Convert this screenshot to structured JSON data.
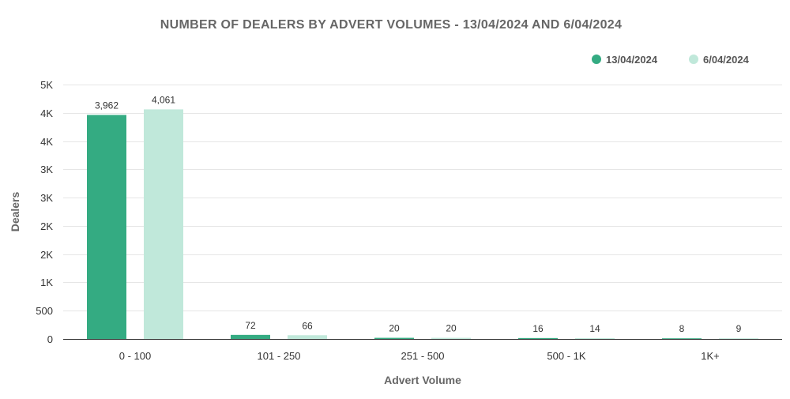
{
  "chart_data": {
    "type": "bar",
    "title": "NUMBER OF DEALERS BY ADVERT VOLUMES - 13/04/2024 AND 6/04/2024",
    "xlabel": "Advert Volume",
    "ylabel": "Dealers",
    "categories": [
      "0 - 100",
      "101 - 250",
      "251 - 500",
      "500 - 1K",
      "1K+"
    ],
    "series": [
      {
        "name": "13/04/2024",
        "color": "#34ab82",
        "values": [
          3962,
          72,
          20,
          16,
          8
        ],
        "labels": [
          "3,962",
          "72",
          "20",
          "16",
          "8"
        ]
      },
      {
        "name": "6/04/2024",
        "color": "#c0e8da",
        "values": [
          4061,
          66,
          20,
          14,
          9
        ],
        "labels": [
          "4,061",
          "66",
          "20",
          "14",
          "9"
        ]
      }
    ],
    "y_ticks": [
      {
        "value": 0,
        "label": "0"
      },
      {
        "value": 500,
        "label": "500"
      },
      {
        "value": 1000,
        "label": "1K"
      },
      {
        "value": 1500,
        "label": "2K"
      },
      {
        "value": 2000,
        "label": "2K"
      },
      {
        "value": 2500,
        "label": "3K"
      },
      {
        "value": 3000,
        "label": "3K"
      },
      {
        "value": 3500,
        "label": "4K"
      },
      {
        "value": 4000,
        "label": "4K"
      },
      {
        "value": 4500,
        "label": "5K"
      }
    ],
    "ylim": [
      0,
      4500
    ],
    "grid": true,
    "legend_position": "top-right"
  }
}
